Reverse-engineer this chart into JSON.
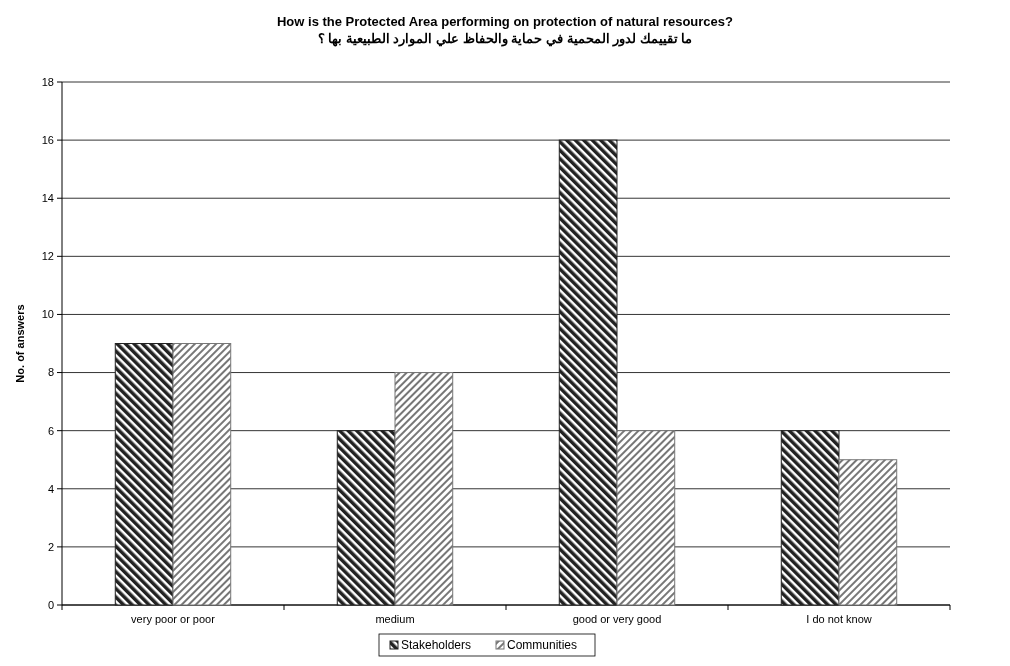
{
  "chart_data": {
    "type": "bar",
    "title": "How is the Protected Area performing on protection of natural resources?",
    "subtitle": "ما تقييمك لدور المحمية في حماية والحفاظ علي الموارد الطبيعية بها ؟",
    "ylabel": "No. of answers",
    "categories": [
      "very poor or poor",
      "medium",
      "good or very good",
      "I do not know"
    ],
    "series": [
      {
        "name": "Stakeholders",
        "color": "#222222",
        "values": [
          9,
          6,
          16,
          6
        ]
      },
      {
        "name": "Communities",
        "color": "#777777",
        "values": [
          9,
          8,
          6,
          5
        ]
      }
    ],
    "ylim": [
      0,
      18
    ],
    "yticks": [
      0,
      2,
      4,
      6,
      8,
      10,
      12,
      14,
      16,
      18
    ],
    "grid": "y",
    "legend": "bottom"
  }
}
